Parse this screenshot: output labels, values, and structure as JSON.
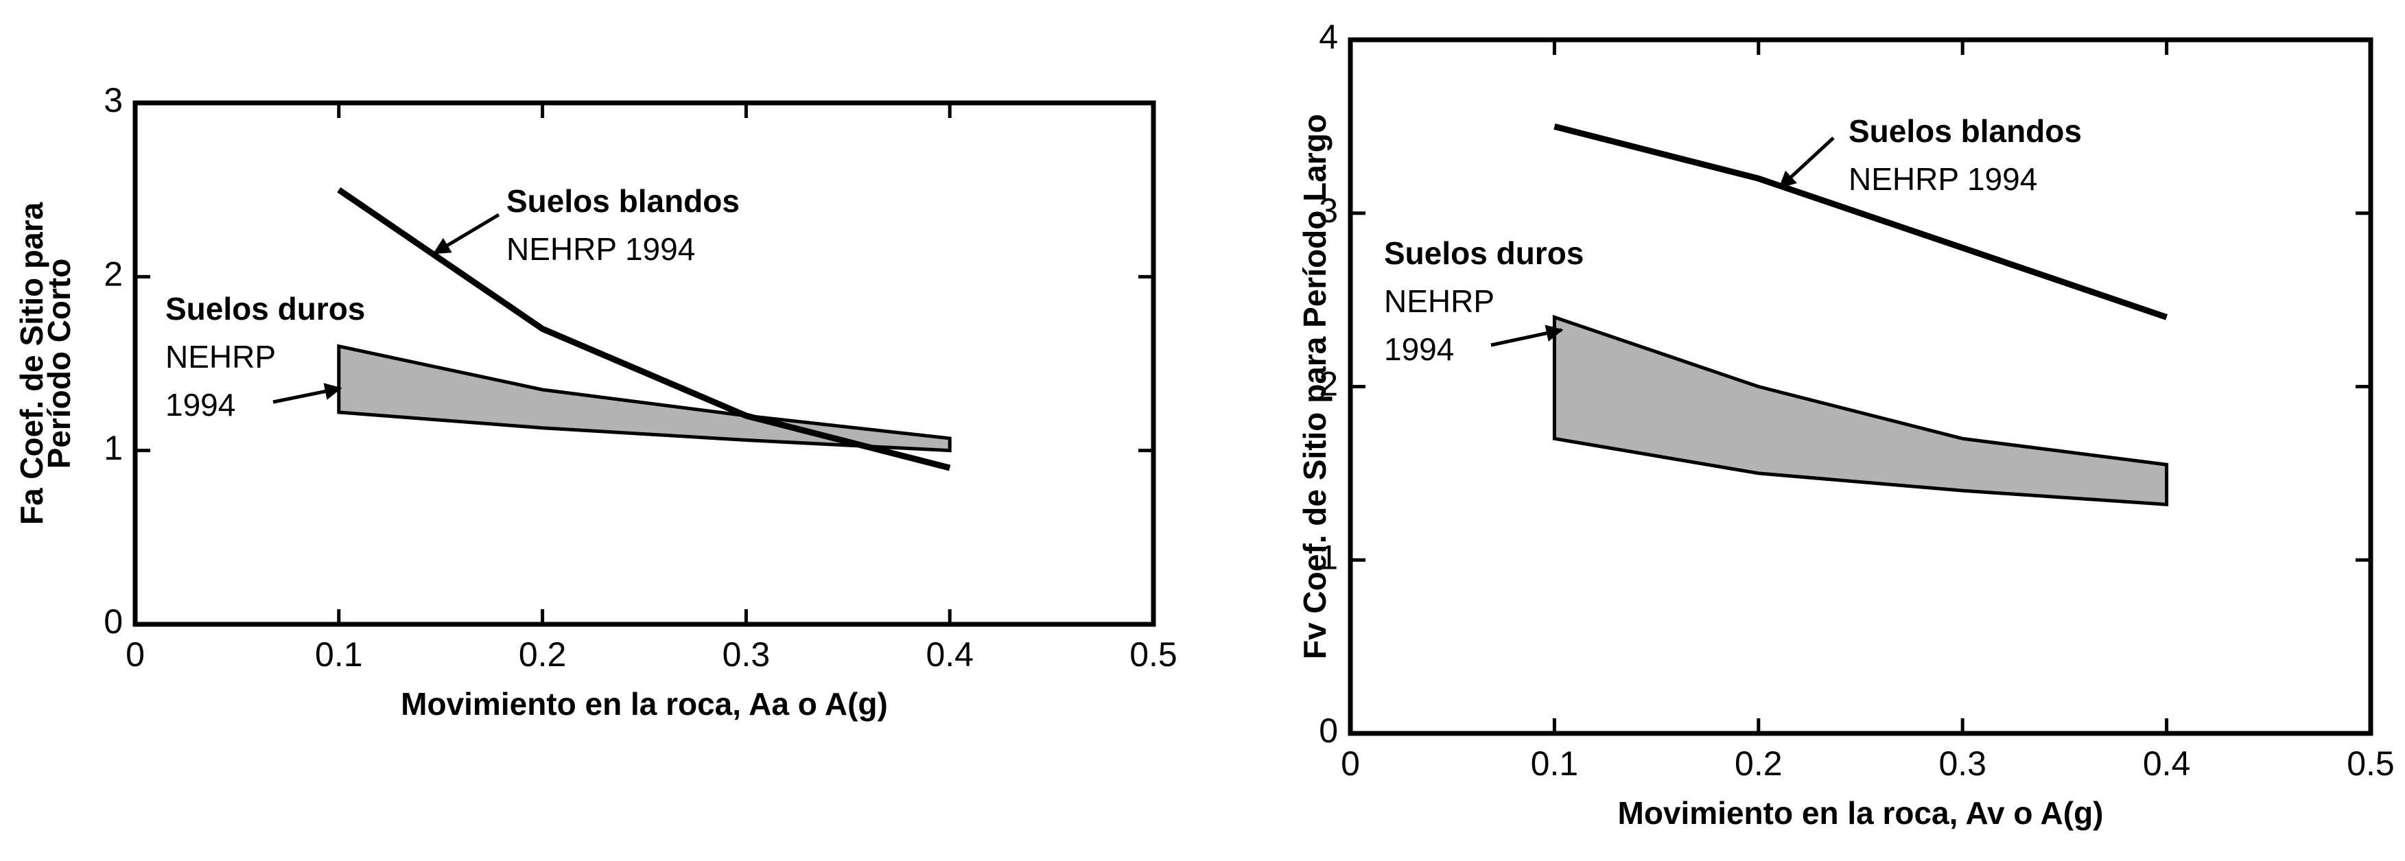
{
  "chart_data": [
    {
      "type": "line",
      "y_label_lines": [
        "Fa Coef. de Sitio para",
        "Período Corto"
      ],
      "x_label": "Movimiento en la roca, Aa o A(g)",
      "x": [
        0.1,
        0.2,
        0.3,
        0.4
      ],
      "series": [
        {
          "color": "#000000",
          "values": [
            2.5,
            1.7,
            1.2,
            0.9
          ]
        }
      ],
      "bands": [
        {
          "color": "#9a9a9a",
          "upper": [
            1.6,
            1.35,
            1.2,
            1.07
          ],
          "lower": [
            1.22,
            1.13,
            1.06,
            1.0
          ]
        }
      ],
      "annotations": [
        {
          "lines": [
            "Suelos blandos",
            "NEHRP 1994"
          ]
        },
        {
          "lines": [
            "Suelos duros",
            "NEHRP",
            "1994"
          ]
        }
      ],
      "xlim": [
        0,
        0.5
      ],
      "xticks": [
        0,
        0.1,
        0.2,
        0.3,
        0.4,
        0.5
      ],
      "ylim": [
        0,
        3
      ],
      "yticks": [
        0,
        1,
        2,
        3
      ]
    },
    {
      "type": "line",
      "y_label_lines": [
        "Fv Coef. de Sitio para Período Largo"
      ],
      "x_label": "Movimiento en la roca, Av o A(g)",
      "x": [
        0.1,
        0.2,
        0.3,
        0.4
      ],
      "series": [
        {
          "color": "#000000",
          "values": [
            3.5,
            3.2,
            2.8,
            2.4
          ]
        }
      ],
      "bands": [
        {
          "color": "#9a9a9a",
          "upper": [
            2.4,
            2.0,
            1.7,
            1.55
          ],
          "lower": [
            1.7,
            1.5,
            1.4,
            1.32
          ]
        }
      ],
      "annotations": [
        {
          "lines": [
            "Suelos blandos",
            "NEHRP 1994"
          ]
        },
        {
          "lines": [
            "Suelos duros",
            "NEHRP",
            "1994"
          ]
        }
      ],
      "xlim": [
        0,
        0.5
      ],
      "xticks": [
        0,
        0.1,
        0.2,
        0.3,
        0.4,
        0.5
      ],
      "ylim": [
        0,
        4
      ],
      "yticks": [
        0,
        1,
        2,
        3,
        4
      ]
    }
  ]
}
